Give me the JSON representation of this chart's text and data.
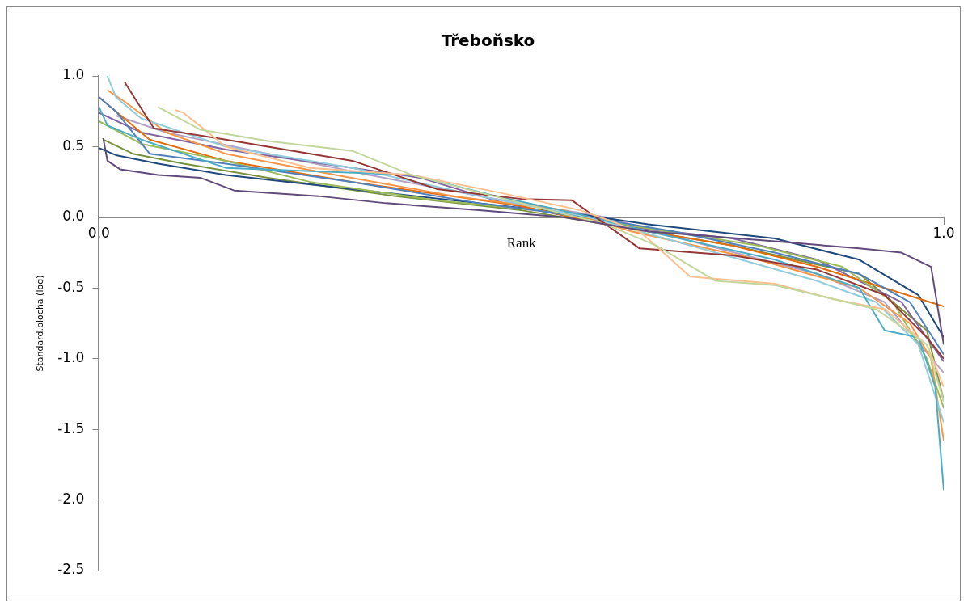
{
  "chart_data": {
    "type": "line",
    "title": "Třeboňsko",
    "xlabel": "Rank",
    "ylabel": "Standard.plocha (log)",
    "marker": "none",
    "line_style": "solid",
    "legend": false,
    "xlim": [
      0,
      1
    ],
    "xticks": [
      {
        "value": 0,
        "label": "0.0"
      },
      {
        "value": 1,
        "label": "1.0"
      }
    ],
    "ylim": [
      -2.5,
      1
    ],
    "yticks": [
      {
        "value": -2.5,
        "label": "-2.5"
      },
      {
        "value": -2,
        "label": "-2.0"
      },
      {
        "value": -1.5,
        "label": "-1.5"
      },
      {
        "value": -1,
        "label": "-1.0"
      },
      {
        "value": -0.5,
        "label": "-0.5"
      },
      {
        "value": 0,
        "label": "0.0"
      },
      {
        "value": 0.5,
        "label": "0.5"
      },
      {
        "value": 1,
        "label": "1.0"
      }
    ],
    "series": [
      {
        "color": "#604a7b",
        "x": [
          0.005,
          0.01,
          0.025,
          0.07,
          0.12,
          0.16,
          0.26,
          0.34,
          0.45,
          0.55,
          0.65,
          0.8,
          0.9,
          0.95,
          0.985,
          1.0
        ],
        "values": [
          0.56,
          0.4,
          0.34,
          0.3,
          0.28,
          0.19,
          0.15,
          0.1,
          0.05,
          0,
          -0.1,
          -0.17,
          -0.22,
          -0.25,
          -0.35,
          -0.9
        ]
      },
      {
        "color": "#c3d69b",
        "x": [
          0.07,
          0.12,
          0.2,
          0.3,
          0.37,
          0.5,
          0.6,
          0.66,
          0.73,
          0.8,
          0.85,
          0.92,
          0.98,
          1.0
        ],
        "values": [
          0.78,
          0.62,
          0.54,
          0.47,
          0.3,
          0.1,
          -0.05,
          -0.2,
          -0.45,
          -0.48,
          -0.55,
          -0.65,
          -0.9,
          -1.3
        ]
      },
      {
        "color": "#fac090",
        "x": [
          0.09,
          0.1,
          0.15,
          0.25,
          0.37,
          0.47,
          0.57,
          0.64,
          0.7,
          0.8,
          0.87,
          0.93,
          0.98,
          1.0
        ],
        "values": [
          0.76,
          0.74,
          0.5,
          0.35,
          0.3,
          0.18,
          0.05,
          -0.1,
          -0.42,
          -0.47,
          -0.58,
          -0.65,
          -0.9,
          -1.2
        ]
      },
      {
        "color": "#953735",
        "x": [
          0.03,
          0.065,
          0.15,
          0.3,
          0.4,
          0.5,
          0.56,
          0.64,
          0.75,
          0.85,
          0.93,
          0.98,
          1.0
        ],
        "values": [
          0.96,
          0.63,
          0.55,
          0.4,
          0.2,
          0.13,
          0.12,
          -0.22,
          -0.27,
          -0.37,
          -0.55,
          -0.85,
          -1.0
        ]
      },
      {
        "color": "#4bacc6",
        "x": [
          0,
          0.01,
          0.05,
          0.15,
          0.37,
          0.47,
          0.57,
          0.65,
          0.8,
          0.9,
          0.93,
          0.97,
          0.99,
          1.0
        ],
        "values": [
          0.78,
          0.65,
          0.55,
          0.35,
          0.3,
          0.15,
          0.02,
          -0.1,
          -0.3,
          -0.5,
          -0.8,
          -0.85,
          -1.2,
          -1.93
        ]
      },
      {
        "color": "#93cddd",
        "x": [
          0.01,
          0.02,
          0.05,
          0.15,
          0.3,
          0.45,
          0.58,
          0.7,
          0.85,
          0.92,
          0.97,
          1.0
        ],
        "values": [
          1.0,
          0.85,
          0.7,
          0.5,
          0.35,
          0.15,
          0,
          -0.2,
          -0.45,
          -0.6,
          -0.9,
          -1.45
        ]
      },
      {
        "color": "#f79646",
        "x": [
          0.01,
          0.03,
          0.08,
          0.15,
          0.28,
          0.42,
          0.55,
          0.63,
          0.78,
          0.9,
          0.96,
          0.985,
          1.0
        ],
        "values": [
          0.9,
          0.82,
          0.6,
          0.45,
          0.3,
          0.15,
          0.05,
          -0.1,
          -0.3,
          -0.5,
          -0.75,
          -1.0,
          -1.58
        ]
      },
      {
        "color": "#4f81bd",
        "x": [
          0,
          0.02,
          0.06,
          0.15,
          0.3,
          0.45,
          0.58,
          0.68,
          0.8,
          0.9,
          0.96,
          1.0
        ],
        "values": [
          0.85,
          0.75,
          0.45,
          0.38,
          0.25,
          0.1,
          0,
          -0.1,
          -0.25,
          -0.4,
          -0.6,
          -0.97
        ]
      },
      {
        "color": "#9bbb59",
        "x": [
          0,
          0.05,
          0.15,
          0.25,
          0.4,
          0.52,
          0.62,
          0.78,
          0.88,
          0.94,
          0.98,
          1.0
        ],
        "values": [
          0.68,
          0.52,
          0.4,
          0.25,
          0.12,
          0.05,
          -0.05,
          -0.2,
          -0.35,
          -0.6,
          -1.0,
          -1.35
        ]
      },
      {
        "color": "#e46c0a",
        "x": [
          0,
          0.06,
          0.15,
          0.3,
          0.5,
          0.6,
          0.75,
          0.85,
          0.93,
          1.0
        ],
        "values": [
          0.85,
          0.55,
          0.4,
          0.25,
          0.08,
          -0.05,
          -0.2,
          -0.35,
          -0.5,
          -0.63
        ]
      },
      {
        "color": "#8064a2",
        "x": [
          0,
          0.05,
          0.15,
          0.3,
          0.38,
          0.48,
          0.6,
          0.75,
          0.85,
          0.95,
          1.0
        ],
        "values": [
          0.74,
          0.6,
          0.48,
          0.35,
          0.28,
          0.1,
          -0.05,
          -0.15,
          -0.3,
          -0.6,
          -1.02
        ]
      },
      {
        "color": "#1f497d",
        "x": [
          0,
          0.02,
          0.07,
          0.15,
          0.3,
          0.45,
          0.57,
          0.65,
          0.8,
          0.9,
          0.97,
          1.0
        ],
        "values": [
          0.49,
          0.44,
          0.38,
          0.3,
          0.2,
          0.1,
          0.02,
          -0.05,
          -0.15,
          -0.3,
          -0.55,
          -0.85
        ]
      },
      {
        "color": "#b3a2c7",
        "x": [
          0.02,
          0.08,
          0.2,
          0.32,
          0.45,
          0.6,
          0.72,
          0.85,
          0.93,
          1.0
        ],
        "values": [
          0.72,
          0.6,
          0.45,
          0.3,
          0.15,
          0,
          -0.2,
          -0.4,
          -0.6,
          -1.1
        ]
      },
      {
        "color": "#77933c",
        "x": [
          0.005,
          0.04,
          0.1,
          0.2,
          0.35,
          0.5,
          0.6,
          0.75,
          0.9,
          0.98,
          1.0
        ],
        "values": [
          0.55,
          0.45,
          0.38,
          0.28,
          0.15,
          0.05,
          -0.05,
          -0.2,
          -0.4,
          -0.8,
          -1.3
        ]
      }
    ]
  }
}
